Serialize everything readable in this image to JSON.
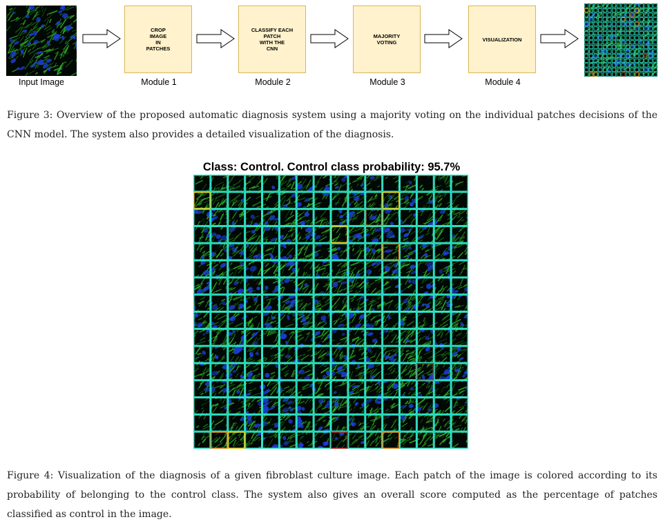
{
  "figure3": {
    "labels": {
      "input": "Input Image",
      "module1": "Module 1",
      "module2": "Module 2",
      "module3": "Module 3",
      "module4": "Module 4"
    },
    "modules": {
      "module1": "CROP\nIMAGE\nIN\nPATCHES",
      "module2": "CLASSIFY EACH\nPATCH\nWITH THE\nCNN",
      "module3": "MAJORITY\nVOTING",
      "module4": "VISUALIZATION"
    },
    "caption": "Figure 3: Overview of the proposed automatic diagnosis system using a majority voting on the individual patches decisions of the CNN model. The system also provides a detailed visualization of the diagnosis."
  },
  "figure4": {
    "title": "Class: Control. Control class probability: 95.7%",
    "caption": "Figure 4: Visualization of the diagnosis of a given fibroblast culture image. Each patch of the image is colored according to its probability of belonging to the control class. The system also gives an overall score computed as the percentage of patches classified as control in the image.",
    "grid_rows": 16,
    "grid_cols": 16,
    "colors": {
      "control": "#2ee6c8",
      "uncertain_yellow": "#e6d21e",
      "uncertain_orange": "#e68a1e",
      "non_control_red": "#b4281e",
      "cell_green": "#2fb52a",
      "nucleus_blue": "#1a3fd6",
      "background": "#020804"
    },
    "highlighted_patches": [
      {
        "row": 1,
        "col": 0,
        "color": "uncertain_yellow"
      },
      {
        "row": 1,
        "col": 11,
        "color": "uncertain_yellow"
      },
      {
        "row": 2,
        "col": 10,
        "color": "uncertain_orange"
      },
      {
        "row": 3,
        "col": 8,
        "color": "uncertain_yellow"
      },
      {
        "row": 4,
        "col": 11,
        "color": "uncertain_orange"
      },
      {
        "row": 11,
        "col": 13,
        "color": "non_control_red"
      },
      {
        "row": 15,
        "col": 1,
        "color": "uncertain_orange"
      },
      {
        "row": 15,
        "col": 2,
        "color": "uncertain_yellow"
      },
      {
        "row": 15,
        "col": 8,
        "color": "non_control_red"
      },
      {
        "row": 15,
        "col": 11,
        "color": "uncertain_orange"
      }
    ]
  }
}
